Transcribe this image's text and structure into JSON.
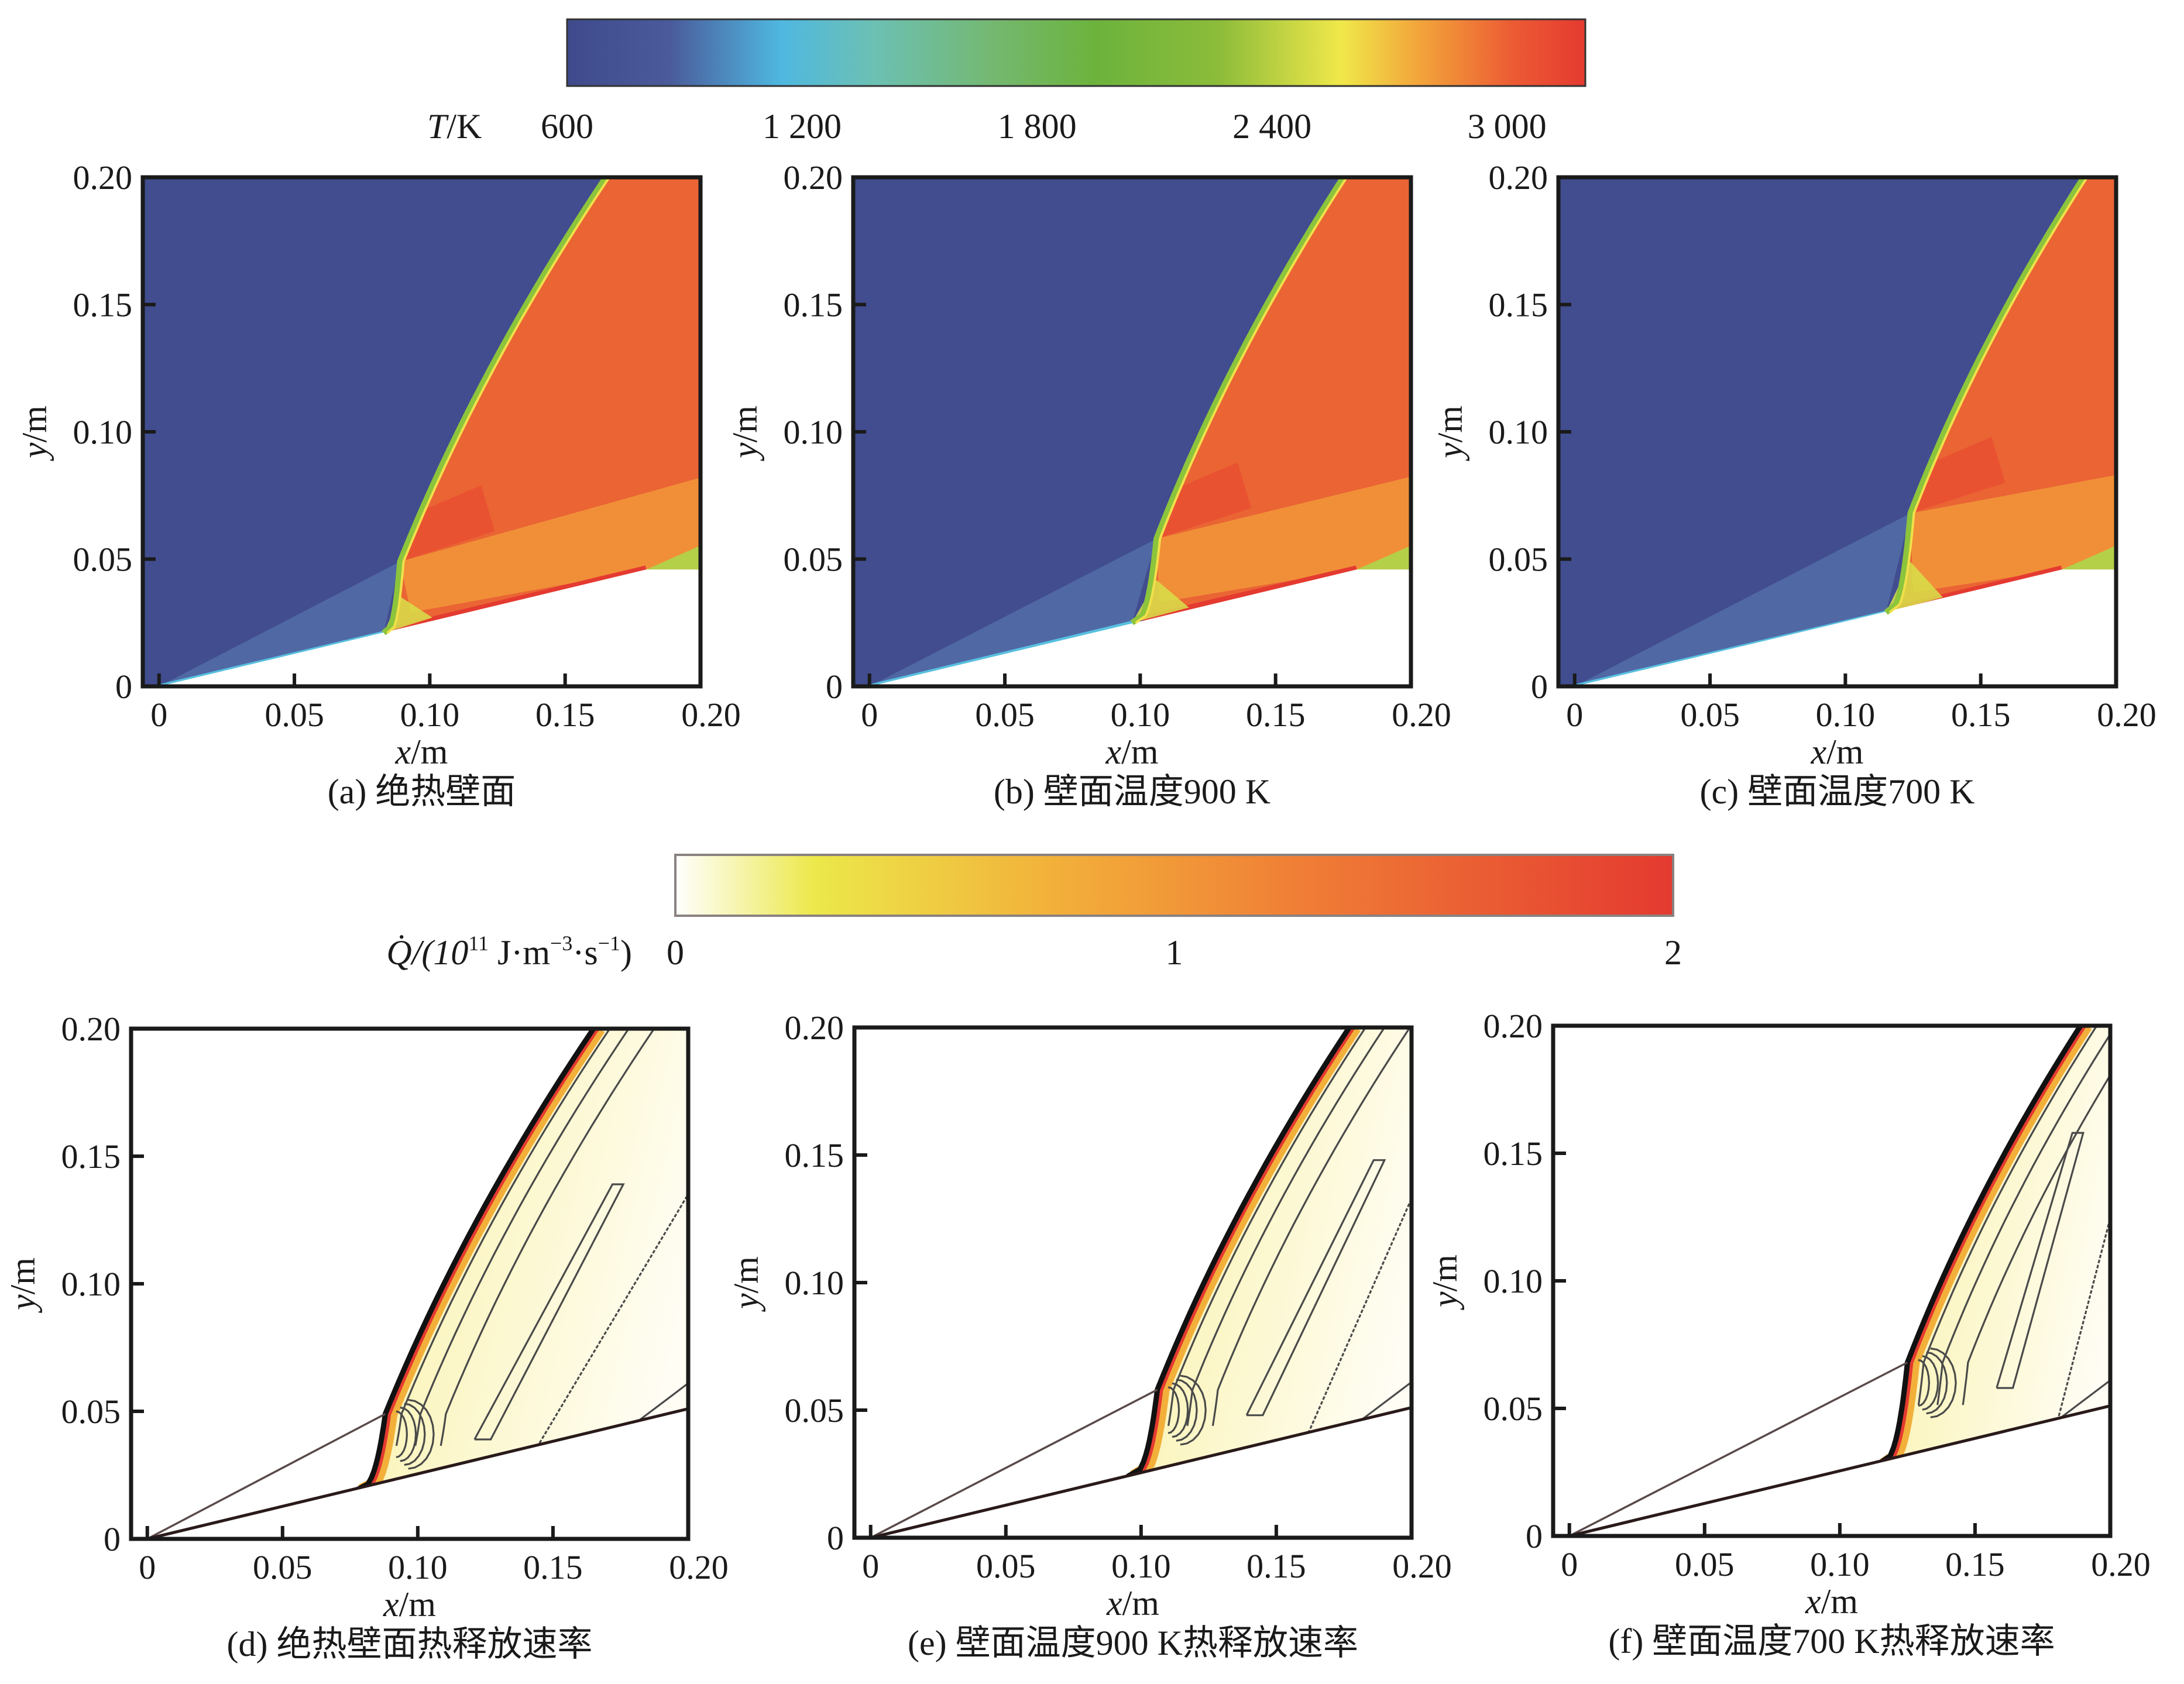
{
  "figure": {
    "temperature_colorbar": {
      "label_var": "T",
      "label_unit": "/K",
      "ticks": [
        "600",
        "1 200",
        "1 800",
        "2 400",
        "3 000"
      ],
      "tick_values": [
        600,
        1200,
        1800,
        2400,
        3000
      ],
      "range": [
        600,
        3200
      ],
      "stops": [
        {
          "v": 0.0,
          "c": "#3f4a8c"
        },
        {
          "v": 0.1,
          "c": "#4a5a9a"
        },
        {
          "v": 0.21,
          "c": "#4fb8e0"
        },
        {
          "v": 0.3,
          "c": "#6cc0b4"
        },
        {
          "v": 0.42,
          "c": "#74b870"
        },
        {
          "v": 0.52,
          "c": "#6cb33c"
        },
        {
          "v": 0.64,
          "c": "#8cbc3a"
        },
        {
          "v": 0.76,
          "c": "#f0e84a"
        },
        {
          "v": 0.84,
          "c": "#f2a23a"
        },
        {
          "v": 0.93,
          "c": "#ec5a34"
        },
        {
          "v": 1.0,
          "c": "#e43a30"
        }
      ]
    },
    "heat_release_colorbar": {
      "label_prefix": "Q̇/(10",
      "label_exp": "11",
      "label_suffix": " J·m",
      "label_exp2": "−3",
      "label_mid": "·s",
      "label_exp3": "−1",
      "label_close": ")",
      "ticks": [
        "0",
        "1",
        "2"
      ],
      "tick_values": [
        0,
        1,
        2
      ],
      "range": [
        0,
        2
      ],
      "stops": [
        {
          "v": 0.0,
          "c": "#ffffff"
        },
        {
          "v": 0.14,
          "c": "#ece84a"
        },
        {
          "v": 0.38,
          "c": "#f2b03a"
        },
        {
          "v": 0.62,
          "c": "#f07f36"
        },
        {
          "v": 1.0,
          "c": "#e43a30"
        }
      ]
    }
  },
  "chart_data": [
    {
      "id": "a",
      "type": "heatmap",
      "field": "temperature",
      "title": "(a) 绝热壁面",
      "xlabel": "x/m",
      "ylabel": "y/m",
      "xlim": [
        -0.006,
        0.2
      ],
      "ylim": [
        0,
        0.2
      ],
      "xticks": [
        "0",
        "0.05",
        "0.10",
        "0.15",
        "0.20"
      ],
      "xtick_values": [
        0,
        0.05,
        0.1,
        0.15,
        0.2
      ],
      "yticks": [
        "0",
        "0.05",
        "0.10",
        "0.15",
        "0.20"
      ],
      "ytick_values": [
        0,
        0.05,
        0.1,
        0.15,
        0.2
      ],
      "wedge_corner_x": 0.18,
      "wedge_angle_deg": 14,
      "oblique_shock_angle_deg": 29,
      "transition_point": [
        0.083,
        0.021
      ],
      "triple_point": [
        0.089,
        0.049
      ],
      "detonation_top_x": 0.165,
      "freestream_T": 650,
      "post_shock_T": 900,
      "detonation_T": 2950
    },
    {
      "id": "b",
      "type": "heatmap",
      "field": "temperature",
      "title": "(b) 壁面温度900 K",
      "xlabel": "x/m",
      "ylabel": "y/m",
      "xlim": [
        -0.006,
        0.2
      ],
      "ylim": [
        0,
        0.2
      ],
      "xticks": [
        "0",
        "0.05",
        "0.10",
        "0.15",
        "0.20"
      ],
      "xtick_values": [
        0,
        0.05,
        0.1,
        0.15,
        0.2
      ],
      "yticks": [
        "0",
        "0.05",
        "0.10",
        "0.15",
        "0.20"
      ],
      "ytick_values": [
        0,
        0.05,
        0.1,
        0.15,
        0.2
      ],
      "wedge_corner_x": 0.18,
      "wedge_angle_deg": 14,
      "oblique_shock_angle_deg": 29,
      "transition_point": [
        0.097,
        0.025
      ],
      "triple_point": [
        0.106,
        0.058
      ],
      "detonation_top_x": 0.175,
      "freestream_T": 650,
      "post_shock_T": 900,
      "detonation_T": 2950
    },
    {
      "id": "c",
      "type": "heatmap",
      "field": "temperature",
      "title": "(c) 壁面温度700 K",
      "xlabel": "x/m",
      "ylabel": "y/m",
      "xlim": [
        -0.006,
        0.2
      ],
      "ylim": [
        0,
        0.2
      ],
      "xticks": [
        "0",
        "0.05",
        "0.10",
        "0.15",
        "0.20"
      ],
      "xtick_values": [
        0,
        0.05,
        0.1,
        0.15,
        0.2
      ],
      "yticks": [
        "0",
        "0.05",
        "0.10",
        "0.15",
        "0.20"
      ],
      "ytick_values": [
        0,
        0.05,
        0.1,
        0.15,
        0.2
      ],
      "wedge_corner_x": 0.18,
      "wedge_angle_deg": 14,
      "oblique_shock_angle_deg": 29,
      "transition_point": [
        0.115,
        0.029
      ],
      "triple_point": [
        0.124,
        0.068
      ],
      "detonation_top_x": 0.188,
      "freestream_T": 650,
      "post_shock_T": 900,
      "detonation_T": 2950
    },
    {
      "id": "d",
      "type": "heatmap",
      "field": "heat_release_rate",
      "title": "(d) 绝热壁面热释放速率",
      "xlabel": "x/m",
      "ylabel": "y/m",
      "xlim": [
        -0.006,
        0.2
      ],
      "ylim": [
        0,
        0.2
      ],
      "xticks": [
        "0",
        "0.05",
        "0.10",
        "0.15",
        "0.20"
      ],
      "xtick_values": [
        0,
        0.05,
        0.1,
        0.15,
        0.2
      ],
      "yticks": [
        "0",
        "0.05",
        "0.10",
        "0.15",
        "0.20"
      ],
      "ytick_values": [
        0,
        0.05,
        0.1,
        0.15,
        0.2
      ],
      "transition_point": [
        0.077,
        0.019
      ],
      "triple_point": [
        0.088,
        0.049
      ],
      "detonation_top_x": 0.165
    },
    {
      "id": "e",
      "type": "heatmap",
      "field": "heat_release_rate",
      "title": "(e) 壁面温度900 K热释放速率",
      "xlabel": "x/m",
      "ylabel": "y/m",
      "xlim": [
        -0.006,
        0.2
      ],
      "ylim": [
        0,
        0.2
      ],
      "xticks": [
        "0",
        "0.05",
        "0.10",
        "0.15",
        "0.20"
      ],
      "xtick_values": [
        0,
        0.05,
        0.1,
        0.15,
        0.2
      ],
      "yticks": [
        "0",
        "0.05",
        "0.10",
        "0.15",
        "0.20"
      ],
      "ytick_values": [
        0,
        0.05,
        0.1,
        0.15,
        0.2
      ],
      "transition_point": [
        0.095,
        0.024
      ],
      "triple_point": [
        0.106,
        0.058
      ],
      "detonation_top_x": 0.177
    },
    {
      "id": "f",
      "type": "heatmap",
      "field": "heat_release_rate",
      "title": "(f) 壁面温度700 K热释放速率",
      "xlabel": "x/m",
      "ylabel": "y/m",
      "xlim": [
        -0.006,
        0.2
      ],
      "ylim": [
        0,
        0.2
      ],
      "xticks": [
        "0",
        "0.05",
        "0.10",
        "0.15",
        "0.20"
      ],
      "xtick_values": [
        0,
        0.05,
        0.1,
        0.15,
        0.2
      ],
      "yticks": [
        "0",
        "0.05",
        "0.10",
        "0.15",
        "0.20"
      ],
      "ytick_values": [
        0,
        0.05,
        0.1,
        0.15,
        0.2
      ],
      "transition_point": [
        0.114,
        0.028
      ],
      "triple_point": [
        0.125,
        0.068
      ],
      "detonation_top_x": 0.189
    }
  ]
}
